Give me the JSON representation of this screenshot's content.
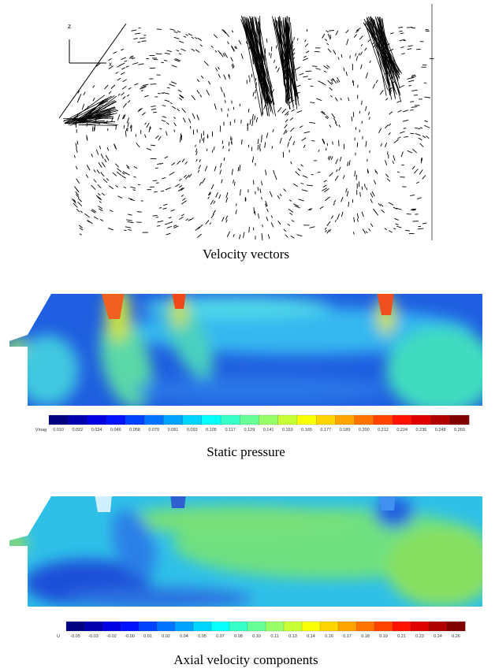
{
  "panels": [
    {
      "caption": "Velocity vectors",
      "axis_labels": [
        "z",
        "x"
      ]
    },
    {
      "caption": "Static pressure",
      "colorbar": {
        "title": "Vmag",
        "labels": [
          "0.010",
          "0.022",
          "0.034",
          "0.046",
          "0.058",
          "0.070",
          "0.081",
          "0.093",
          "0.105",
          "0.117",
          "0.129",
          "0.141",
          "0.153",
          "0.165",
          "0.177",
          "0.189",
          "0.200",
          "0.212",
          "0.224",
          "0.236",
          "0.248",
          "0.260"
        ]
      }
    },
    {
      "caption": "Axial velocity components",
      "colorbar": {
        "title": "U",
        "labels": [
          "-0.05",
          "-0.03",
          "-0.02",
          "-0.00",
          "0.01",
          "0.02",
          "0.04",
          "0.05",
          "0.07",
          "0.08",
          "0.10",
          "0.11",
          "0.13",
          "0.14",
          "0.16",
          "0.17",
          "0.18",
          "0.19",
          "0.21",
          "0.23",
          "0.24",
          "0.26"
        ]
      }
    }
  ]
}
